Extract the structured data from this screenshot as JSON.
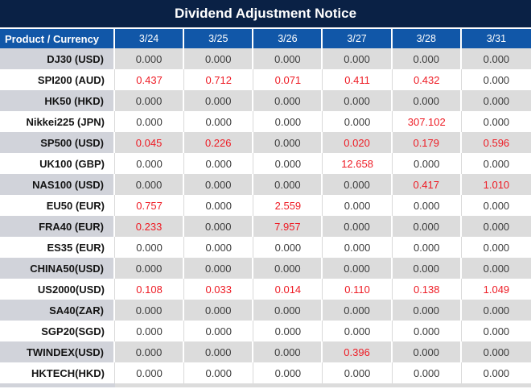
{
  "title": "Dividend Adjustment Notice",
  "table": {
    "corner_header": "Product / Currency",
    "date_columns": [
      "3/24",
      "3/25",
      "3/26",
      "3/27",
      "3/28",
      "3/31"
    ],
    "zero_value": "0.000",
    "rows": [
      {
        "product": "DJ30 (USD)",
        "values": [
          "0.000",
          "0.000",
          "0.000",
          "0.000",
          "0.000",
          "0.000"
        ]
      },
      {
        "product": "SPI200 (AUD)",
        "values": [
          "0.437",
          "0.712",
          "0.071",
          "0.411",
          "0.432",
          "0.000"
        ]
      },
      {
        "product": "HK50 (HKD)",
        "values": [
          "0.000",
          "0.000",
          "0.000",
          "0.000",
          "0.000",
          "0.000"
        ]
      },
      {
        "product": "Nikkei225 (JPN)",
        "values": [
          "0.000",
          "0.000",
          "0.000",
          "0.000",
          "307.102",
          "0.000"
        ]
      },
      {
        "product": "SP500 (USD)",
        "values": [
          "0.045",
          "0.226",
          "0.000",
          "0.020",
          "0.179",
          "0.596"
        ]
      },
      {
        "product": "UK100 (GBP)",
        "values": [
          "0.000",
          "0.000",
          "0.000",
          "12.658",
          "0.000",
          "0.000"
        ]
      },
      {
        "product": "NAS100 (USD)",
        "values": [
          "0.000",
          "0.000",
          "0.000",
          "0.000",
          "0.417",
          "1.010"
        ]
      },
      {
        "product": "EU50 (EUR)",
        "values": [
          "0.757",
          "0.000",
          "2.559",
          "0.000",
          "0.000",
          "0.000"
        ]
      },
      {
        "product": "FRA40 (EUR)",
        "values": [
          "0.233",
          "0.000",
          "7.957",
          "0.000",
          "0.000",
          "0.000"
        ]
      },
      {
        "product": "ES35 (EUR)",
        "values": [
          "0.000",
          "0.000",
          "0.000",
          "0.000",
          "0.000",
          "0.000"
        ]
      },
      {
        "product": "CHINA50(USD)",
        "values": [
          "0.000",
          "0.000",
          "0.000",
          "0.000",
          "0.000",
          "0.000"
        ]
      },
      {
        "product": "US2000(USD)",
        "values": [
          "0.108",
          "0.033",
          "0.014",
          "0.110",
          "0.138",
          "1.049"
        ]
      },
      {
        "product": "SA40(ZAR)",
        "values": [
          "0.000",
          "0.000",
          "0.000",
          "0.000",
          "0.000",
          "0.000"
        ]
      },
      {
        "product": "SGP20(SGD)",
        "values": [
          "0.000",
          "0.000",
          "0.000",
          "0.000",
          "0.000",
          "0.000"
        ]
      },
      {
        "product": "TWINDEX(USD)",
        "values": [
          "0.000",
          "0.000",
          "0.000",
          "0.396",
          "0.000",
          "0.000"
        ]
      },
      {
        "product": "HKTECH(HKD)",
        "values": [
          "0.000",
          "0.000",
          "0.000",
          "0.000",
          "0.000",
          "0.000"
        ]
      }
    ]
  },
  "colors": {
    "title_bar_bg": "#0a2145",
    "header_bg": "#1157a8",
    "band_gray": "#dcdcdc",
    "band_gray_product": "#d1d3da",
    "value_default": "#3c3c3c",
    "value_highlight": "#ee1c25",
    "header_text": "#ffffff"
  }
}
